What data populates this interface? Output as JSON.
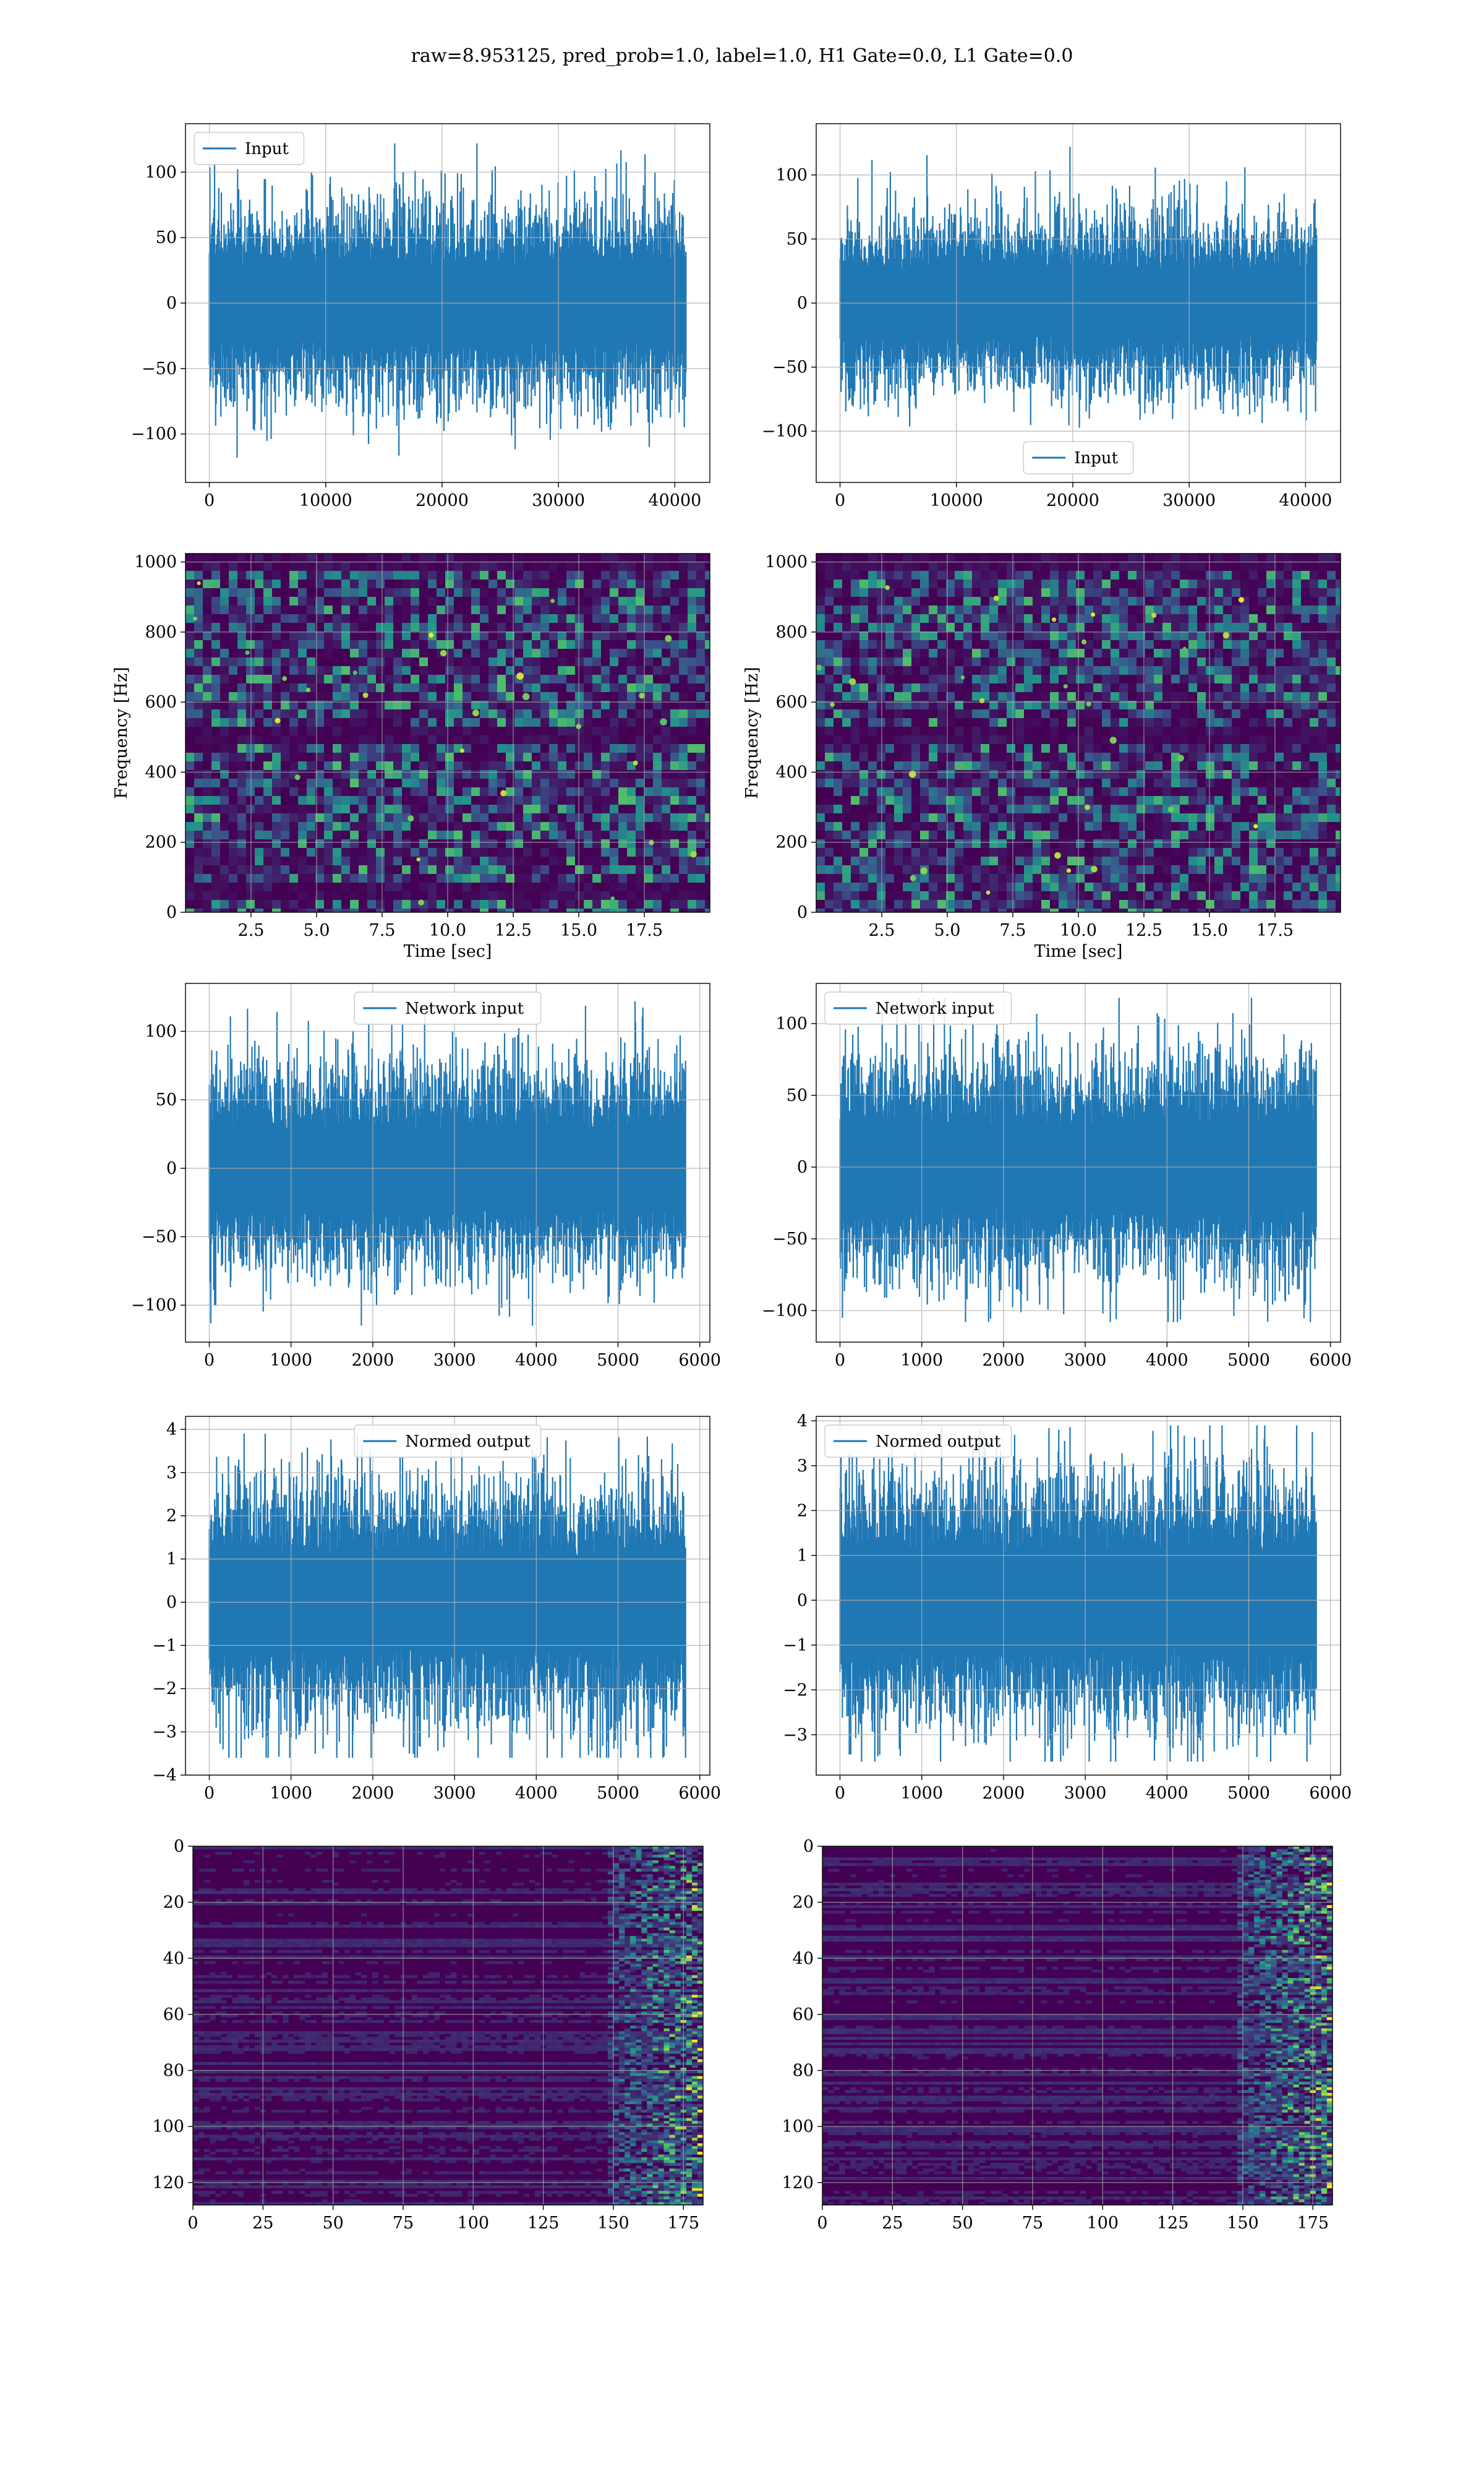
{
  "figure": {
    "title": "raw=8.953125, pred_prob=1.0, label=1.0, H1 Gate=0.0, L1 Gate=0.0",
    "colors": {
      "line": "#1f77b4",
      "grid": "#b0b0b0",
      "viridis_dark": "#440154",
      "viridis_mid": "#21918c",
      "viridis_light": "#fde725"
    }
  },
  "chart_data": [
    {
      "id": "input-h1",
      "type": "line",
      "row": 0,
      "col": 0,
      "legend": "Input",
      "legend_loc": "upper-left",
      "xlim": [
        -2048,
        43008
      ],
      "ylim": [
        -137,
        137
      ],
      "xticks": [
        0,
        10000,
        20000,
        30000,
        40000
      ],
      "yticks": [
        -100,
        -50,
        0,
        50,
        100
      ],
      "n_samples": 40960,
      "noise_sigma": 22,
      "peak_max": 122,
      "peak_min": -124
    },
    {
      "id": "input-l1",
      "type": "line",
      "row": 0,
      "col": 1,
      "legend": "Input",
      "legend_loc": "lower-center",
      "xlim": [
        -2048,
        43008
      ],
      "ylim": [
        -140,
        140
      ],
      "xticks": [
        0,
        10000,
        20000,
        30000,
        40000
      ],
      "yticks": [
        -100,
        -50,
        0,
        50,
        100
      ],
      "n_samples": 40960,
      "noise_sigma": 20,
      "peak_max": 122,
      "peak_min": -130
    },
    {
      "id": "spectrogram-h1",
      "type": "heatmap",
      "row": 1,
      "col": 0,
      "xlabel": "Time [sec]",
      "ylabel": "Frequency [Hz]",
      "xlim": [
        0,
        20
      ],
      "ylim": [
        0,
        1024
      ],
      "xticks": [
        2.5,
        5.0,
        7.5,
        10.0,
        12.5,
        15.0,
        17.5
      ],
      "yticks": [
        0,
        200,
        400,
        600,
        800,
        1000
      ],
      "dark_bands_hz": [
        60,
        500,
        1000
      ]
    },
    {
      "id": "spectrogram-l1",
      "type": "heatmap",
      "row": 1,
      "col": 1,
      "xlabel": "Time [sec]",
      "ylabel": "Frequency [Hz]",
      "xlim": [
        0,
        20
      ],
      "ylim": [
        0,
        1024
      ],
      "xticks": [
        2.5,
        5.0,
        7.5,
        10.0,
        12.5,
        15.0,
        17.5
      ],
      "yticks": [
        0,
        200,
        400,
        600,
        800,
        1000
      ],
      "dark_bands_hz": [
        500,
        1000
      ]
    },
    {
      "id": "network-input-h1",
      "type": "line",
      "row": 2,
      "col": 0,
      "legend": "Network input",
      "legend_loc": "upper-center",
      "xlim": [
        -291,
        6123
      ],
      "ylim": [
        -127,
        135
      ],
      "xticks": [
        0,
        1000,
        2000,
        3000,
        4000,
        5000,
        6000
      ],
      "yticks": [
        -100,
        -50,
        0,
        50,
        100
      ],
      "n_samples": 5832,
      "noise_sigma": 22,
      "peak_max": 122,
      "peak_min": -115
    },
    {
      "id": "network-input-l1",
      "type": "line",
      "row": 2,
      "col": 1,
      "legend": "Network input",
      "legend_loc": "upper-left",
      "xlim": [
        -291,
        6123
      ],
      "ylim": [
        -122,
        128
      ],
      "xticks": [
        0,
        1000,
        2000,
        3000,
        4000,
        5000,
        6000
      ],
      "yticks": [
        -100,
        -50,
        0,
        50,
        100
      ],
      "n_samples": 5832,
      "noise_sigma": 22,
      "peak_max": 118,
      "peak_min": -108
    },
    {
      "id": "normed-output-h1",
      "type": "line",
      "row": 3,
      "col": 0,
      "legend": "Normed output",
      "legend_loc": "upper-center",
      "xlim": [
        -291,
        6123
      ],
      "ylim": [
        -4.0,
        4.3
      ],
      "xticks": [
        0,
        1000,
        2000,
        3000,
        4000,
        5000,
        6000
      ],
      "yticks": [
        -4,
        -3,
        -2,
        -1,
        0,
        1,
        2,
        3,
        4
      ],
      "n_samples": 5832,
      "noise_sigma": 0.8,
      "peak_max": 3.9,
      "peak_min": -3.6
    },
    {
      "id": "normed-output-l1",
      "type": "line",
      "row": 3,
      "col": 1,
      "legend": "Normed output",
      "legend_loc": "upper-left",
      "xlim": [
        -291,
        6123
      ],
      "ylim": [
        -3.9,
        4.1
      ],
      "xticks": [
        0,
        1000,
        2000,
        3000,
        4000,
        5000,
        6000
      ],
      "yticks": [
        -3,
        -2,
        -1,
        0,
        1,
        2,
        3,
        4
      ],
      "n_samples": 5832,
      "noise_sigma": 0.8,
      "peak_max": 3.9,
      "peak_min": -3.6
    },
    {
      "id": "feature-map-h1",
      "type": "heatmap",
      "row": 4,
      "col": 0,
      "xlim": [
        0,
        182
      ],
      "ylim": [
        128,
        0
      ],
      "xticks": [
        0,
        25,
        50,
        75,
        100,
        125,
        150,
        175
      ],
      "yticks": [
        0,
        20,
        40,
        60,
        80,
        100,
        120
      ],
      "bright_from_col": 148
    },
    {
      "id": "feature-map-l1",
      "type": "heatmap",
      "row": 4,
      "col": 1,
      "xlim": [
        0,
        182
      ],
      "ylim": [
        128,
        0
      ],
      "xticks": [
        0,
        25,
        50,
        75,
        100,
        125,
        150,
        175
      ],
      "yticks": [
        0,
        20,
        40,
        60,
        80,
        100,
        120
      ],
      "bright_from_col": 148
    }
  ]
}
